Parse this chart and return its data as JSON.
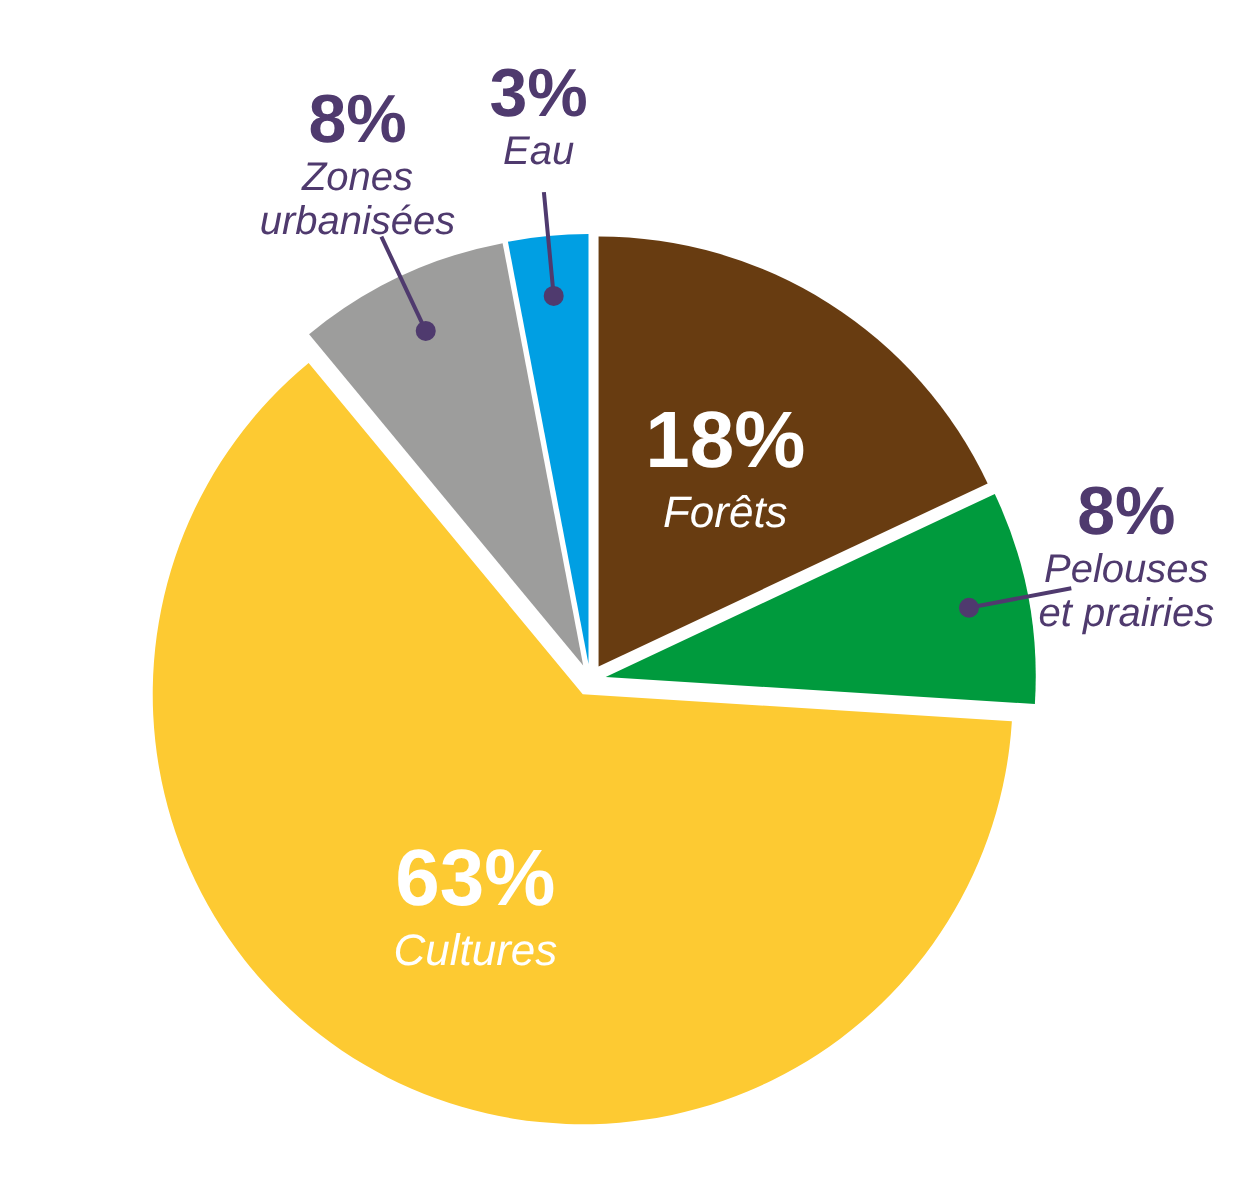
{
  "chart_data": {
    "type": "pie",
    "categories": [
      "Forêts",
      "Pelouses\net prairies",
      "Cultures",
      "Zones\nurbanisées",
      "Eau"
    ],
    "values": [
      18,
      8,
      63,
      8,
      3
    ],
    "colors": [
      "#683c11",
      "#009a3d",
      "#fdca32",
      "#9d9d9c",
      "#009fe3"
    ],
    "value_labels": [
      "18%",
      "8%",
      "63%",
      "8%",
      "3%"
    ]
  }
}
